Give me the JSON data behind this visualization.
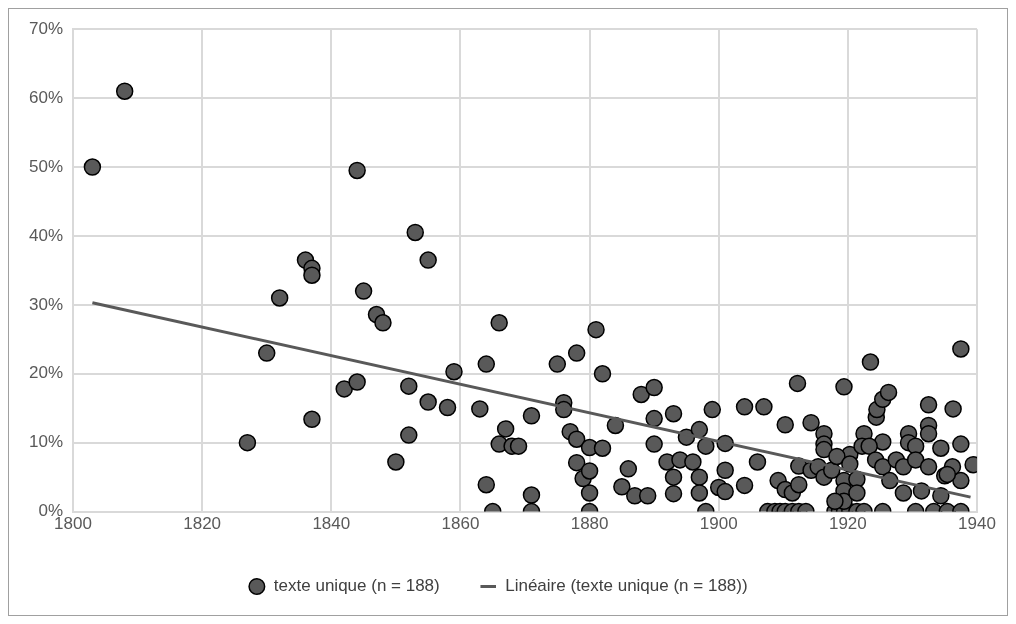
{
  "chart_data": {
    "type": "scatter",
    "xlim": [
      1800,
      1940
    ],
    "xticks": [
      1800,
      1820,
      1840,
      1860,
      1880,
      1900,
      1920,
      1940
    ],
    "ylim": [
      0,
      70
    ],
    "yticks": [
      {
        "value": 0,
        "label": "0%"
      },
      {
        "value": 10,
        "label": "10%"
      },
      {
        "value": 20,
        "label": "20%"
      },
      {
        "value": 30,
        "label": "30%"
      },
      {
        "value": 40,
        "label": "40%"
      },
      {
        "value": 50,
        "label": "50%"
      },
      {
        "value": 60,
        "label": "60%"
      },
      {
        "value": 70,
        "label": "70%"
      }
    ],
    "grid": true,
    "legend": "bottom",
    "marker": "circle",
    "series": [
      {
        "name": "texte unique (n = 188)",
        "color": "#595959",
        "x": [
          1803,
          1808,
          1827,
          1830,
          1832,
          1836,
          1837,
          1837,
          1837,
          1842,
          1844,
          1844,
          1845,
          1847,
          1848,
          1850,
          1852,
          1852,
          1853,
          1855,
          1855,
          1858,
          1859,
          1863,
          1864,
          1864,
          1865,
          1866,
          1866,
          1867,
          1868,
          1869,
          1871,
          1871,
          1871,
          1875,
          1876,
          1876,
          1877,
          1878,
          1878,
          1878,
          1879,
          1880,
          1880,
          1880,
          1880,
          1881,
          1882,
          1882,
          1884,
          1885,
          1886,
          1887,
          1888,
          1889,
          1890,
          1890,
          1890,
          1892,
          1893,
          1893,
          1893,
          1894,
          1895,
          1896,
          1897,
          1897,
          1897,
          1898,
          1898,
          1899,
          1900,
          1901,
          1901,
          1901,
          1904,
          1904,
          1906,
          1907,
          1910.3,
          1912.2,
          1914.3,
          1916.3,
          1916.3,
          1916.3,
          1919.4,
          1920.3,
          1923.5,
          1924.4,
          1924.5,
          1925.4,
          1926.3,
          1922.5,
          1925.4,
          1929.4,
          1932.5,
          1932.5,
          1932.5,
          1934.4,
          1936.3,
          1937.5,
          1937.5,
          1937.5,
          1939.4,
          1936.2,
          1935,
          1907.6,
          1908.7,
          1909.5,
          1910.3,
          1911.4,
          1912.4,
          1913.5,
          1918,
          1918.7,
          1919.5,
          1920.3,
          1921.4,
          1922.5,
          1925.4,
          1930.5,
          1933.3,
          1935.4,
          1937.5,
          1909.2,
          1910.3,
          1911.4,
          1912.4,
          1912.4,
          1914.3,
          1915.4,
          1916.3,
          1917.5,
          1918.3,
          1919.4,
          1919.4,
          1919.4,
          1918,
          1920.3,
          1921.4,
          1921.4,
          1922.2,
          1923.3,
          1924.3,
          1925.4,
          1926.5,
          1927.5,
          1928.6,
          1928.6,
          1929.4,
          1930.5,
          1930.5,
          1931.4,
          1932.5,
          1934.4,
          1935.4
        ],
        "values": [
          50,
          61,
          10,
          23,
          31,
          36.5,
          35.3,
          34.3,
          13.4,
          17.8,
          18.8,
          49.5,
          32,
          28.6,
          27.4,
          7.2,
          11.1,
          18.2,
          40.5,
          36.5,
          15.9,
          15.1,
          20.3,
          14.9,
          21.4,
          3.9,
          0,
          27.4,
          9.8,
          12,
          9.5,
          9.5,
          2.4,
          0,
          13.9,
          21.4,
          15.8,
          14.8,
          11.6,
          23,
          10.5,
          7.1,
          4.8,
          9.3,
          0,
          2.7,
          5.9,
          26.4,
          20,
          9.2,
          12.5,
          3.6,
          6.2,
          2.3,
          17,
          2.3,
          18,
          13.5,
          9.8,
          7.2,
          2.6,
          14.2,
          5,
          7.5,
          10.8,
          7.2,
          11.9,
          5,
          2.7,
          9.5,
          0,
          14.8,
          3.5,
          9.9,
          6,
          2.9,
          15.2,
          3.8,
          7.2,
          15.2,
          12.6,
          18.6,
          12.9,
          11.3,
          9.8,
          9,
          18.1,
          8.3,
          21.7,
          13.7,
          14.8,
          16.3,
          17.3,
          11.3,
          10.1,
          11.3,
          15.5,
          12.5,
          11.3,
          9.2,
          14.9,
          23.6,
          9.8,
          4.5,
          6.8,
          6.5,
          5.2,
          0,
          0,
          0,
          0,
          0,
          0,
          0,
          0,
          0,
          0,
          0,
          0,
          0,
          0,
          0,
          0,
          0,
          0,
          4.5,
          3.2,
          2.7,
          3.9,
          6.6,
          6,
          6.5,
          5,
          6,
          8,
          4.5,
          3,
          1.5,
          1.5,
          6.9,
          4.7,
          2.7,
          9.5,
          9.5,
          7.5,
          6.5,
          4.5,
          7.5,
          6.5,
          2.7,
          10,
          9.5,
          7.5,
          3,
          6.5,
          2.3,
          5.4
        ]
      },
      {
        "name": "Linéaire (texte unique (n = 188))",
        "type": "line",
        "color": "#595959",
        "line_style": "solid",
        "marker": "none",
        "x": [
          1803,
          1939
        ],
        "values": [
          30.3,
          2.1
        ]
      }
    ]
  }
}
